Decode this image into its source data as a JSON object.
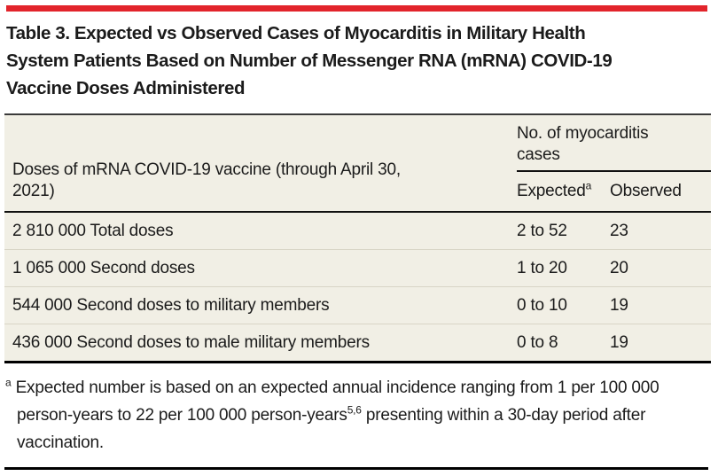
{
  "title": {
    "lines": [
      "Table 3. Expected vs Observed Cases of Myocarditis in Military Health",
      "System Patients Based on Number of Messenger RNA (mRNA) COVID-19",
      "Vaccine Doses Administered"
    ]
  },
  "table": {
    "col1_header": "Doses of mRNA COVID-19 vaccine (through April 30, 2021)",
    "group_header": "No. of myocarditis cases",
    "sub_headers": {
      "expected": "Expected",
      "expected_sup": "a",
      "observed": "Observed"
    },
    "rows": [
      {
        "label": "2 810 000 Total doses",
        "expected": "2 to 52",
        "observed": "23"
      },
      {
        "label": "1 065 000 Second doses",
        "expected": "1 to 20",
        "observed": "20"
      },
      {
        "label": "544 000 Second doses to military members",
        "expected": "0 to 10",
        "observed": "19"
      },
      {
        "label": "436 000 Second doses to male military members",
        "expected": "0 to 8",
        "observed": "19"
      }
    ]
  },
  "footnote": {
    "marker": "a",
    "text_before_sup": "Expected number is based on an expected annual incidence ranging from 1 per 100 000 person-years to 22 per 100 000 person-years",
    "sup": "5,6",
    "text_after_sup": " presenting within a 30-day period after vaccination."
  },
  "colors": {
    "accent_red": "#e2242b",
    "table_background": "#f1efe5",
    "row_divider": "#d8d5c6"
  }
}
